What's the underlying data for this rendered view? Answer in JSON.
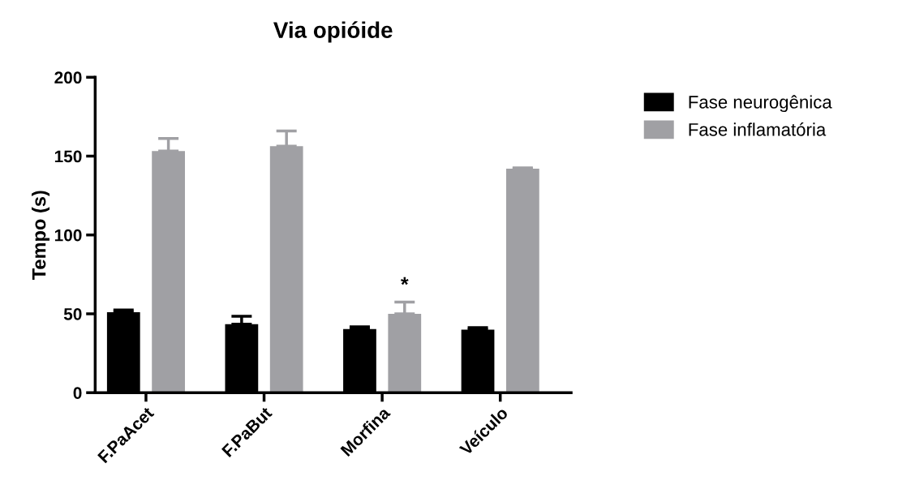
{
  "chart_data": {
    "type": "bar",
    "title": "Via opióide",
    "ylabel": "Tempo (s)",
    "categories": [
      "F.PaAcet",
      "F.PaBut",
      "Morfina",
      "Veículo"
    ],
    "series": [
      {
        "name": "Fase neurogênica",
        "color": "#000000",
        "values": [
          51,
          43.4,
          40.4,
          40
        ],
        "errors": [
          [
            51,
            52.4
          ],
          [
            43.4,
            48.4
          ],
          [
            40.4,
            41.8
          ],
          [
            40,
            41.3
          ]
        ]
      },
      {
        "name": "Fase inflamatória",
        "color": "#a0a0a4",
        "values": [
          153.2,
          156.3,
          50,
          142
        ],
        "value_labels": [
          null,
          null,
          "*",
          null
        ],
        "errors": [
          [
            153.2,
            161.2
          ],
          [
            156.3,
            165.9
          ],
          [
            50,
            57.4
          ],
          [
            142,
            142.5
          ]
        ]
      }
    ],
    "ylim": [
      0,
      200
    ],
    "yticks": [
      0,
      50,
      100,
      150,
      200
    ],
    "grid": false,
    "legend": "top right"
  }
}
